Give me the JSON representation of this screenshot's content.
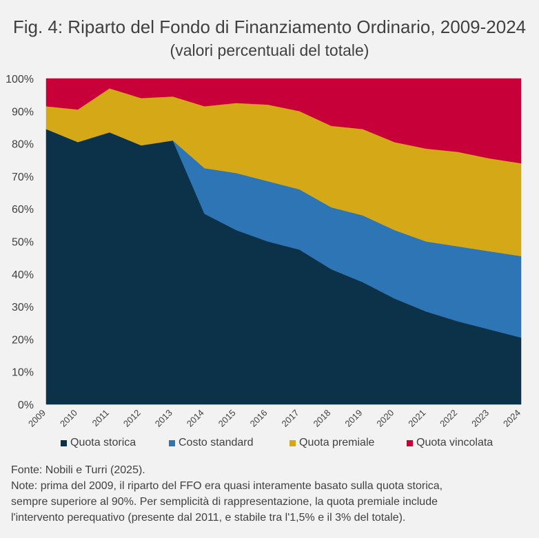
{
  "header": {
    "title": "Fig. 4: Riparto del Fondo di Finanziamento Ordinario, 2009-2024",
    "subtitle": "(valori percentuali del totale)"
  },
  "chart_data": {
    "type": "area",
    "stacked": true,
    "categories": [
      "2009",
      "2010",
      "2011",
      "2012",
      "2013",
      "2014",
      "2015",
      "2016",
      "2017",
      "2018",
      "2019",
      "2020",
      "2021",
      "2022",
      "2023",
      "2024"
    ],
    "series": [
      {
        "name": "Quota storica",
        "color": "#0b3249",
        "values": [
          84.5,
          80.5,
          83.5,
          79.5,
          81,
          58.5,
          53.5,
          50,
          47.5,
          41.5,
          37.5,
          32.5,
          28.5,
          25.5,
          23,
          20.5
        ]
      },
      {
        "name": "Costo standard",
        "color": "#2e75b6",
        "values": [
          0,
          0,
          0,
          0,
          0,
          14,
          17.5,
          18.5,
          18.5,
          19,
          20.5,
          21,
          21.5,
          23,
          24,
          25
        ]
      },
      {
        "name": "Quota premiale",
        "color": "#d4a817",
        "values": [
          7,
          10,
          13.5,
          14.5,
          13.5,
          19,
          21.5,
          23.5,
          24,
          25,
          26.5,
          27,
          28.5,
          29,
          28.5,
          28.5
        ]
      },
      {
        "name": "Quota vincolata",
        "color": "#c8003a",
        "values": [
          8.5,
          9.5,
          3,
          6,
          5.5,
          8.5,
          7.5,
          8,
          10,
          14.5,
          15.5,
          19.5,
          21.5,
          22.5,
          24.5,
          26
        ]
      }
    ],
    "yticks": [
      "0%",
      "10%",
      "20%",
      "30%",
      "40%",
      "50%",
      "60%",
      "70%",
      "80%",
      "90%",
      "100%"
    ],
    "ylim": [
      0,
      100
    ],
    "legend_position": "bottom",
    "grid": false
  },
  "notes": {
    "source": "Fonte: Nobili e Turri (2025).",
    "note_lines": [
      "Note: prima del 2009, il riparto del FFO era quasi interamente basato sulla quota storica,",
      "sempre superiore al 90%. Per semplicità di rappresentazione, la quota premiale include",
      "l'intervento perequativo (presente dal 2011, e stabile tra l'1,5% e il 3% del totale)."
    ]
  }
}
